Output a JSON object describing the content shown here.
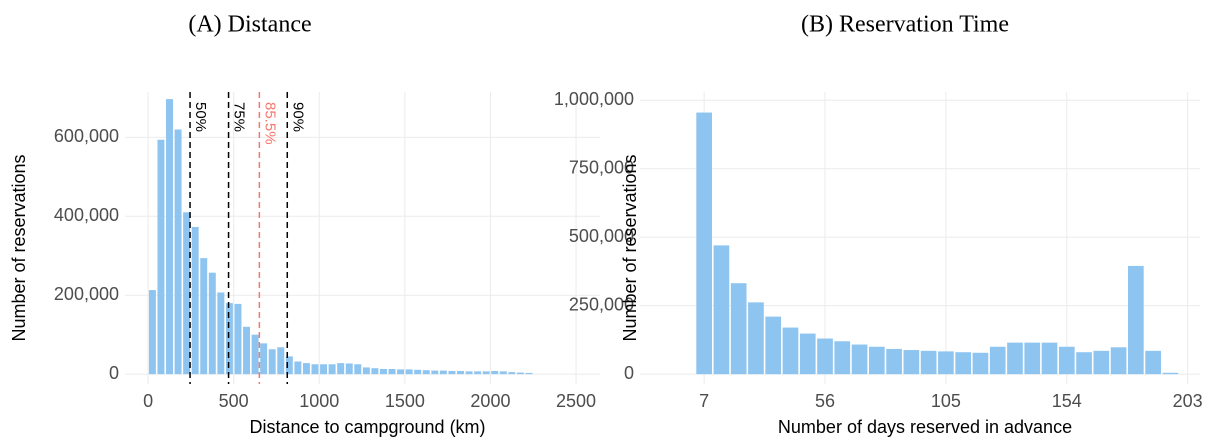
{
  "chart_data": [
    {
      "type": "histogram",
      "title": "(A) Distance",
      "x_label": "Distance to campground (km)",
      "y_label": "Number of reservations",
      "bins": [
        0,
        50,
        100,
        150,
        200,
        250,
        300,
        350,
        400,
        450,
        500,
        550,
        600,
        650,
        700,
        750,
        800,
        850,
        900,
        950,
        1000,
        1050,
        1100,
        1150,
        1200,
        1250,
        1300,
        1350,
        1400,
        1450,
        1500,
        1550,
        1600,
        1650,
        1700,
        1750,
        1800,
        1850,
        1900,
        1950,
        2000,
        2050,
        2100,
        2150,
        2200,
        2250
      ],
      "values": [
        213000,
        594000,
        697000,
        620000,
        410000,
        373000,
        294000,
        257000,
        207000,
        180000,
        178000,
        120000,
        100000,
        78000,
        63000,
        68000,
        45000,
        32000,
        28000,
        25000,
        25000,
        25000,
        28000,
        27000,
        25000,
        17000,
        15000,
        13000,
        13000,
        12000,
        12000,
        11000,
        10000,
        9000,
        9000,
        8000,
        8000,
        7000,
        7000,
        7000,
        8000,
        7000,
        5000,
        4000,
        3000
      ],
      "color": "#8ec4f0",
      "xlim": [
        -135,
        2640
      ],
      "xticks": [
        0,
        500,
        1000,
        1500,
        2000,
        2500
      ],
      "ylim": [
        -25000,
        715000
      ],
      "yticks": [
        0,
        {
          "value": 200000,
          "label": "200,000"
        },
        {
          "value": 400000,
          "label": "400,000"
        },
        {
          "value": 600000,
          "label": "600,000"
        }
      ],
      "grid": true,
      "vlines": [
        {
          "x": 245,
          "label": "50%",
          "color": "#000000"
        },
        {
          "x": 470,
          "label": "75%",
          "color": "#000000"
        },
        {
          "x": 650,
          "label": "85.5%",
          "color": "#f8766d"
        },
        {
          "x": 813,
          "label": "90%",
          "color": "#000000"
        }
      ]
    },
    {
      "type": "histogram",
      "title": "(B) Reservation Time",
      "x_label": "Number of days reserved in advance",
      "y_label": "Number of reservations",
      "bins": [
        3.5,
        10.5,
        17.5,
        24.5,
        31.5,
        38.5,
        45.5,
        52.5,
        59.5,
        66.5,
        73.5,
        80.5,
        87.5,
        94.5,
        101.5,
        108.5,
        115.5,
        122.5,
        129.5,
        136.5,
        143.5,
        150.5,
        157.5,
        164.5,
        171.5,
        178.5,
        185.5,
        192.5,
        199.5
      ],
      "values": [
        955000,
        470000,
        332000,
        262000,
        210000,
        170000,
        148000,
        130000,
        120000,
        108000,
        100000,
        92000,
        88000,
        85000,
        83000,
        80000,
        78000,
        100000,
        115000,
        115000,
        115000,
        100000,
        80000,
        85000,
        98000,
        395000,
        85000,
        5000
      ],
      "color": "#8ec4f0",
      "xlim": [
        -19,
        208
      ],
      "xticks": [
        7,
        56,
        105,
        154,
        203
      ],
      "ylim": [
        -36000,
        1030000
      ],
      "yticks": [
        0,
        {
          "value": 250000,
          "label": "250,000"
        },
        {
          "value": 500000,
          "label": "500,000"
        },
        {
          "value": 750000,
          "label": "750,000"
        },
        {
          "value": 1000000,
          "label": "1,000,000"
        }
      ],
      "grid": true
    }
  ]
}
